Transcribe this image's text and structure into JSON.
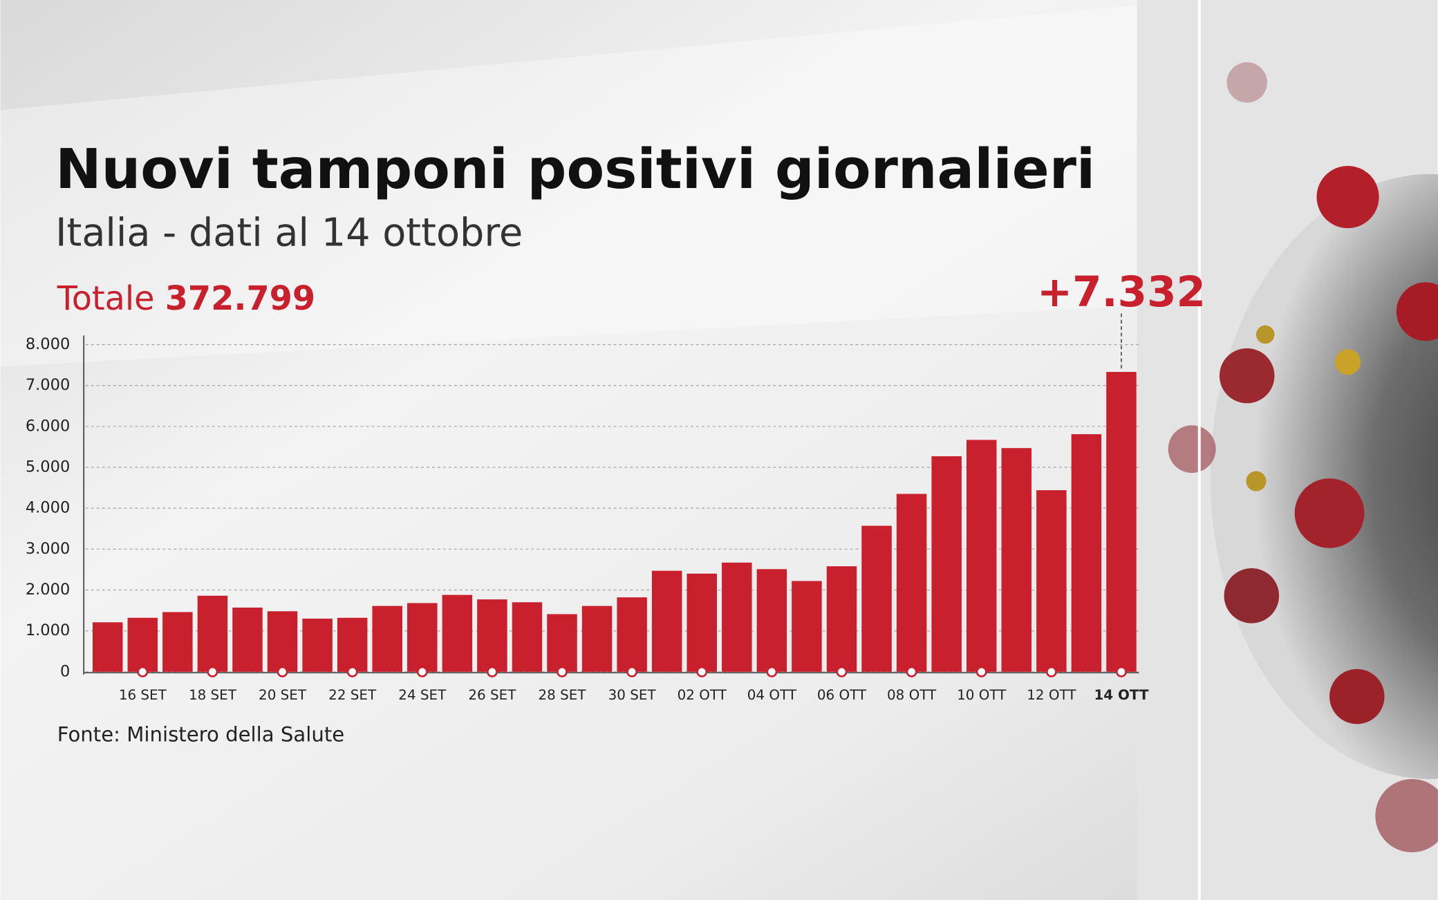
{
  "chart_data": {
    "type": "bar",
    "title": "Nuovi tamponi positivi giornalieri",
    "subtitle": "Italia - dati al 14 ottobre",
    "total_label": "Totale",
    "total": "372.799",
    "source": "Fonte: Ministero della Salute",
    "categories": [
      null,
      "16 SET",
      null,
      "18 SET",
      null,
      "20 SET",
      null,
      "22 SET",
      null,
      "24 SET",
      null,
      "26 SET",
      null,
      "28 SET",
      null,
      "30 SET",
      null,
      "02 OTT",
      null,
      "04 OTT",
      null,
      "06 OTT",
      null,
      "08 OTT",
      null,
      "10 OTT",
      null,
      "12 OTT",
      null,
      "14 OTT"
    ],
    "values": [
      1210,
      1320,
      1460,
      1860,
      1570,
      1480,
      1300,
      1320,
      1610,
      1680,
      1880,
      1770,
      1700,
      1410,
      1610,
      1820,
      2470,
      2400,
      2670,
      2510,
      2220,
      2580,
      3570,
      4350,
      5270,
      5670,
      5470,
      4440,
      5810,
      7332
    ],
    "value_labels": [
      null,
      null,
      null,
      null,
      null,
      null,
      null,
      null,
      null,
      null,
      null,
      null,
      null,
      null,
      null,
      null,
      null,
      null,
      null,
      null,
      null,
      null,
      null,
      null,
      null,
      null,
      null,
      null,
      null,
      "+7.332"
    ],
    "color": "#c8202c",
    "ylim": [
      0,
      8000
    ],
    "yticks": [
      0,
      {
        "value": 1000,
        "label": "1.000"
      },
      {
        "value": 2000,
        "label": "2.000"
      },
      {
        "value": 3000,
        "label": "3.000"
      },
      {
        "value": 4000,
        "label": "4.000"
      },
      {
        "value": 5000,
        "label": "5.000"
      },
      {
        "value": 6000,
        "label": "6.000"
      },
      {
        "value": 7000,
        "label": "7.000"
      },
      {
        "value": 8000,
        "label": "8.000"
      }
    ],
    "grid": true
  }
}
